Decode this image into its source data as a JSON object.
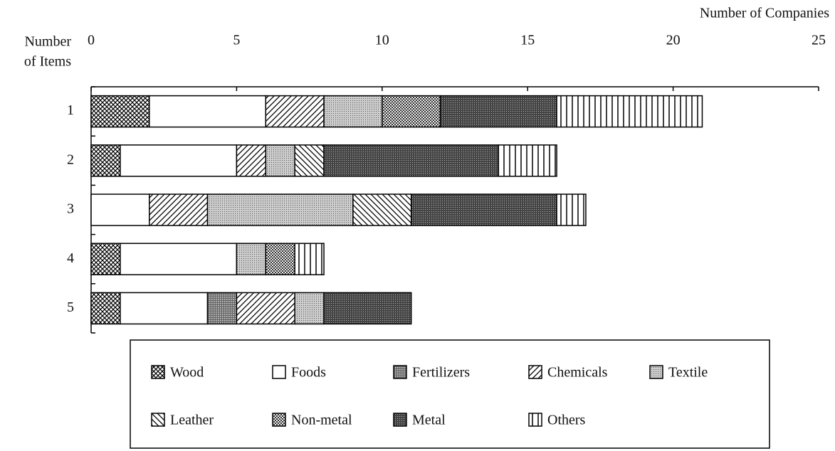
{
  "chart_data": {
    "type": "stacked-barh",
    "x_label": "Number of Companies",
    "y_label": [
      "Number",
      "of Items"
    ],
    "categories": [
      "1",
      "2",
      "3",
      "4",
      "5"
    ],
    "xlim": [
      0,
      25
    ],
    "xticks": [
      0,
      5,
      10,
      15,
      20,
      25
    ],
    "legend": "bottom",
    "series": [
      {
        "name": "Wood",
        "color": "#000000",
        "pattern": "crosshatch",
        "values": [
          2,
          1,
          0,
          1,
          1
        ]
      },
      {
        "name": "Foods",
        "color": "#000000",
        "pattern": "none",
        "values": [
          4,
          4,
          2,
          4,
          3
        ]
      },
      {
        "name": "Fertilizers",
        "color": "#000000",
        "pattern": "dark-dots",
        "values": [
          0,
          0,
          0,
          0,
          1
        ]
      },
      {
        "name": "Chemicals",
        "color": "#000000",
        "pattern": "diagonal",
        "values": [
          2,
          1,
          2,
          0,
          2
        ]
      },
      {
        "name": "Textile",
        "color": "#000000",
        "pattern": "dots",
        "values": [
          2,
          1,
          5,
          1,
          1
        ]
      },
      {
        "name": "Leather",
        "color": "#000000",
        "pattern": "backdiagonal",
        "values": [
          0,
          1,
          2,
          0,
          0
        ]
      },
      {
        "name": "Non-metal",
        "color": "#000000",
        "pattern": "checker",
        "values": [
          2,
          0,
          0,
          1,
          0
        ]
      },
      {
        "name": "Metal",
        "color": "#000000",
        "pattern": "dense-dots",
        "values": [
          4,
          6,
          5,
          0,
          3
        ]
      },
      {
        "name": "Others",
        "color": "#000000",
        "pattern": "vertical",
        "values": [
          5,
          2,
          1,
          1,
          0
        ]
      }
    ]
  }
}
